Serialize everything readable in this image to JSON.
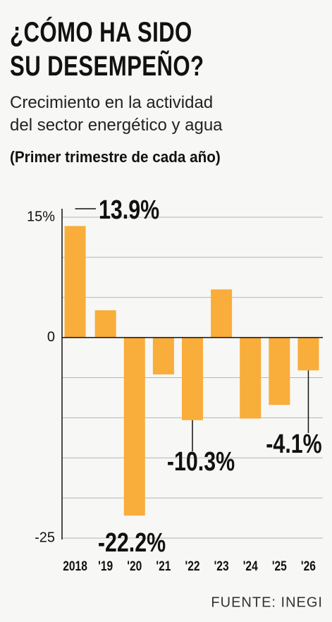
{
  "chart_data": {
    "type": "bar",
    "title_lines": [
      "¿CÓMO HA SIDO",
      "SU DESEMPEÑO?"
    ],
    "subtitle_lines": [
      "Crecimiento en la actividad",
      "del sector energético y agua"
    ],
    "note": "(Primer trimestre de cada año)",
    "source": "FUENTE: INEGI",
    "categories": [
      "2018",
      "'19",
      "'20",
      "'21",
      "'22",
      "'23",
      "'24",
      "'25",
      "'26"
    ],
    "values": [
      13.9,
      3.4,
      -22.2,
      -4.6,
      -10.3,
      6.0,
      -10.1,
      -8.4,
      -4.1
    ],
    "value_labels": [
      "13.9%",
      null,
      "-22.2%",
      null,
      "-10.3%",
      null,
      null,
      null,
      "-4.1%"
    ],
    "color": "#f9ad3a",
    "ylim": [
      -25,
      15
    ],
    "yticks": [
      {
        "value": 15,
        "label": "15%"
      },
      0,
      -25
    ],
    "grid_lines": [
      15,
      10,
      5,
      -5,
      -10,
      -15,
      -20,
      -25
    ]
  }
}
